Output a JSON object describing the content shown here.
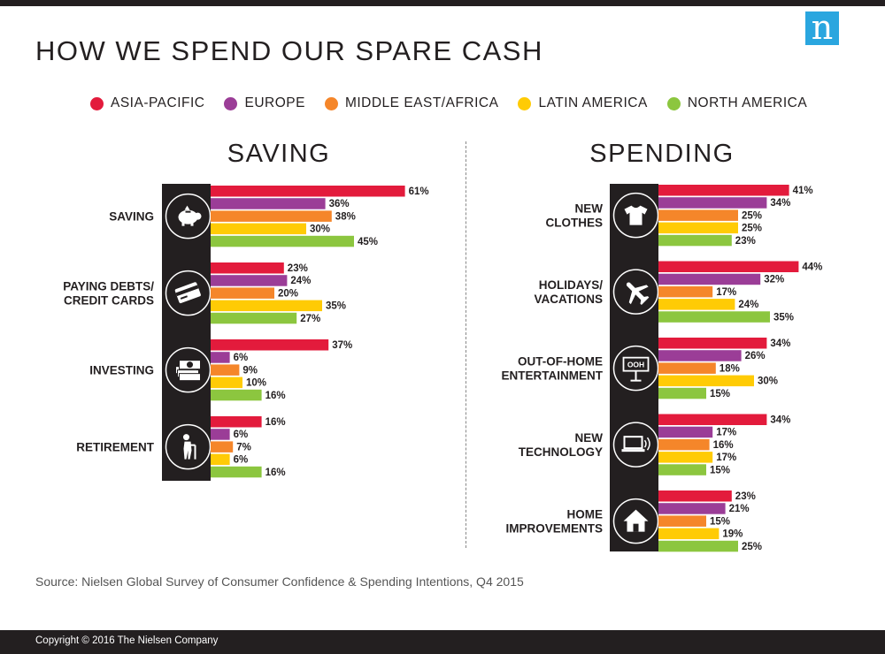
{
  "title": "HOW WE SPEND OUR SPARE CASH",
  "logo_letter": "n",
  "legend": [
    {
      "name": "ASIA-PACIFIC",
      "color": "#e31b3c"
    },
    {
      "name": "EUROPE",
      "color": "#9b3d97"
    },
    {
      "name": "MIDDLE EAST/AFRICA",
      "color": "#f5862a"
    },
    {
      "name": "LATIN AMERICA",
      "color": "#ffcb05"
    },
    {
      "name": "NORTH AMERICA",
      "color": "#8cc63f"
    }
  ],
  "source": "Source: Nielsen Global Survey of Consumer Confidence & Spending Intentions, Q4 2015",
  "copyright": "Copyright © 2016 The Nielsen Company",
  "chart_data": [
    {
      "type": "bar",
      "orientation": "horizontal",
      "title": "SAVING",
      "unit": "%",
      "series_names": [
        "ASIA-PACIFIC",
        "EUROPE",
        "MIDDLE EAST/AFRICA",
        "LATIN AMERICA",
        "NORTH AMERICA"
      ],
      "categories": [
        {
          "label": [
            "SAVING"
          ],
          "icon": "piggy-bank-icon",
          "values": [
            61,
            36,
            38,
            30,
            45
          ]
        },
        {
          "label": [
            "PAYING DEBTS/",
            "CREDIT CARDS"
          ],
          "icon": "credit-card-icon",
          "values": [
            23,
            24,
            20,
            35,
            27
          ]
        },
        {
          "label": [
            "INVESTING"
          ],
          "icon": "money-stack-icon",
          "values": [
            37,
            6,
            9,
            10,
            16
          ]
        },
        {
          "label": [
            "RETIREMENT"
          ],
          "icon": "elderly-person-icon",
          "values": [
            16,
            6,
            7,
            6,
            16
          ]
        }
      ]
    },
    {
      "type": "bar",
      "orientation": "horizontal",
      "title": "SPENDING",
      "unit": "%",
      "series_names": [
        "ASIA-PACIFIC",
        "EUROPE",
        "MIDDLE EAST/AFRICA",
        "LATIN AMERICA",
        "NORTH AMERICA"
      ],
      "categories": [
        {
          "label": [
            "NEW",
            "CLOTHES"
          ],
          "icon": "t-shirt-icon",
          "values": [
            41,
            34,
            25,
            25,
            23
          ]
        },
        {
          "label": [
            "HOLIDAYS/",
            "VACATIONS"
          ],
          "icon": "airplane-icon",
          "values": [
            44,
            32,
            17,
            24,
            35
          ]
        },
        {
          "label": [
            "OUT-OF-HOME",
            "ENTERTAINMENT"
          ],
          "icon": "ooh-sign-icon",
          "icon_text": "OOH",
          "values": [
            34,
            26,
            18,
            30,
            15
          ]
        },
        {
          "label": [
            "NEW",
            "TECHNOLOGY"
          ],
          "icon": "laptop-icon",
          "values": [
            34,
            17,
            16,
            17,
            15
          ]
        },
        {
          "label": [
            "HOME",
            "IMPROVEMENTS"
          ],
          "icon": "house-icon",
          "values": [
            23,
            21,
            15,
            19,
            25
          ]
        }
      ]
    }
  ]
}
